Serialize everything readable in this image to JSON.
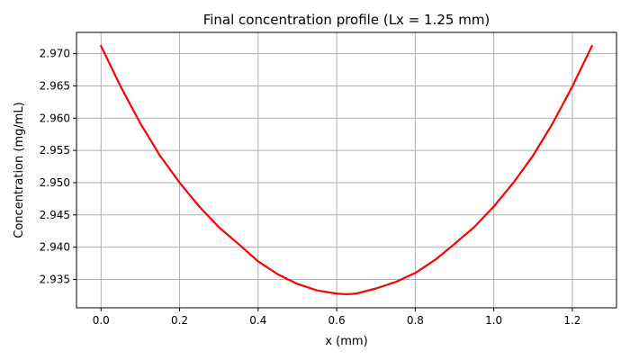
{
  "chart_data": {
    "type": "line",
    "title": "Final concentration profile (Lx = 1.25 mm)",
    "xlabel": "x (mm)",
    "ylabel": "Concentration (mg/mL)",
    "xlim": [
      -0.0625,
      1.3125
    ],
    "ylim": [
      2.9306,
      2.9733
    ],
    "xticks": [
      0.0,
      0.2,
      0.4,
      0.6,
      0.8,
      1.0,
      1.2
    ],
    "xtick_labels": [
      "0.0",
      "0.2",
      "0.4",
      "0.6",
      "0.8",
      "1.0",
      "1.2"
    ],
    "yticks": [
      2.935,
      2.94,
      2.945,
      2.95,
      2.955,
      2.96,
      2.965,
      2.97
    ],
    "ytick_labels": [
      "2.935",
      "2.940",
      "2.945",
      "2.950",
      "2.955",
      "2.960",
      "2.965",
      "2.970"
    ],
    "grid": true,
    "series": [
      {
        "color": "#ff0000",
        "x": [
          0.0,
          0.05,
          0.1,
          0.15,
          0.2,
          0.25,
          0.3,
          0.35,
          0.4,
          0.45,
          0.5,
          0.55,
          0.6,
          0.625,
          0.65,
          0.7,
          0.75,
          0.8,
          0.85,
          0.9,
          0.95,
          1.0,
          1.05,
          1.1,
          1.15,
          1.2,
          1.25
        ],
        "y": [
          2.9712,
          2.9649,
          2.9592,
          2.9542,
          2.95,
          2.9463,
          2.9431,
          2.9405,
          2.9378,
          2.9358,
          2.9343,
          2.9333,
          2.9328,
          2.9327,
          2.9328,
          2.9336,
          2.9346,
          2.936,
          2.938,
          2.9405,
          2.9431,
          2.9463,
          2.95,
          2.9542,
          2.9592,
          2.9649,
          2.9712
        ]
      }
    ]
  }
}
